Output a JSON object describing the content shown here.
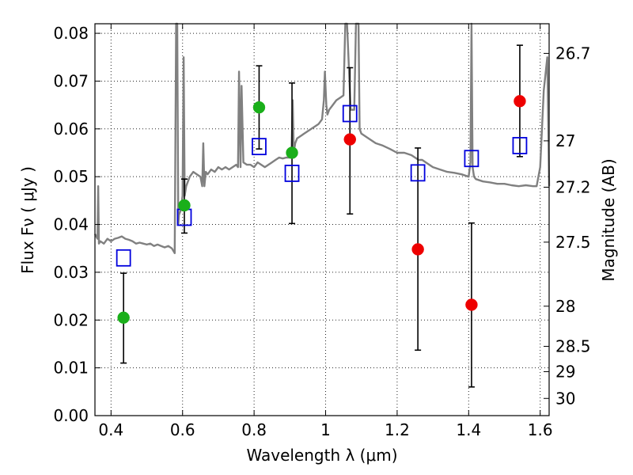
{
  "chart_data": {
    "type": "scatter",
    "xlabel": "Wavelength  λ (μm)",
    "ylabel_left": "Flux  Fν  ( μJy )",
    "ylabel_right": "Magnitude (AB)",
    "xlim": [
      0.355,
      1.625
    ],
    "ylim": [
      0.0,
      0.082
    ],
    "grid": true,
    "x_ticks": [
      0.4,
      0.6,
      0.8,
      1.0,
      1.2,
      1.4,
      1.6
    ],
    "x_tick_labels": [
      "0.4",
      "0.6",
      "0.8",
      "1",
      "1.2",
      "1.4",
      "1.6"
    ],
    "y_ticks": [
      0.0,
      0.01,
      0.02,
      0.03,
      0.04,
      0.05,
      0.06,
      0.07,
      0.08
    ],
    "y_tick_labels": [
      "0.00",
      "0.01",
      "0.02",
      "0.03",
      "0.04",
      "0.05",
      "0.06",
      "0.07",
      "0.08"
    ],
    "right_axis_ticks": [
      {
        "flux": 0.0758,
        "label": "26.7"
      },
      {
        "flux": 0.0575,
        "label": "27"
      },
      {
        "flux": 0.0478,
        "label": "27.2"
      },
      {
        "flux": 0.0363,
        "label": "27.5"
      },
      {
        "flux": 0.0229,
        "label": "28"
      },
      {
        "flux": 0.0145,
        "label": "28.5"
      },
      {
        "flux": 0.0092,
        "label": "29"
      },
      {
        "flux": 0.0036,
        "label": "30"
      }
    ],
    "colors": {
      "template": "#808080",
      "detection": "#1aaf1a",
      "upper_limit": "#ee0000",
      "model_box": "#0000dd",
      "errorbar": "#000000"
    },
    "series": [
      {
        "name": "observed-detections",
        "marker": "circle",
        "color": "#1aaf1a",
        "points": [
          {
            "x": 0.435,
            "y": 0.0205,
            "ylo": 0.011,
            "yhi": 0.0298
          },
          {
            "x": 0.605,
            "y": 0.044,
            "ylo": 0.0382,
            "yhi": 0.0495
          },
          {
            "x": 0.814,
            "y": 0.0645,
            "ylo": 0.0558,
            "yhi": 0.0732
          },
          {
            "x": 0.906,
            "y": 0.055,
            "ylo": 0.0402,
            "yhi": 0.0696
          }
        ]
      },
      {
        "name": "observed-low-significance",
        "marker": "circle",
        "color": "#ee0000",
        "points": [
          {
            "x": 1.068,
            "y": 0.0578,
            "ylo": 0.0422,
            "yhi": 0.0728
          },
          {
            "x": 1.258,
            "y": 0.0348,
            "ylo": 0.0137,
            "yhi": 0.056
          },
          {
            "x": 1.408,
            "y": 0.0232,
            "ylo": 0.006,
            "yhi": 0.0403
          },
          {
            "x": 1.543,
            "y": 0.0658,
            "ylo": 0.0542,
            "yhi": 0.0775
          }
        ]
      },
      {
        "name": "model-synthetic-photometry",
        "marker": "open-square",
        "color": "#0000dd",
        "points": [
          {
            "x": 0.435,
            "y": 0.033
          },
          {
            "x": 0.605,
            "y": 0.0415
          },
          {
            "x": 0.814,
            "y": 0.0563
          },
          {
            "x": 0.906,
            "y": 0.0507
          },
          {
            "x": 1.068,
            "y": 0.0632
          },
          {
            "x": 1.258,
            "y": 0.0508
          },
          {
            "x": 1.408,
            "y": 0.0538
          },
          {
            "x": 1.543,
            "y": 0.0565
          }
        ]
      },
      {
        "name": "template-spectrum",
        "marker": "line",
        "color": "#808080",
        "x": [
          0.355,
          0.362,
          0.364,
          0.366,
          0.37,
          0.38,
          0.39,
          0.4,
          0.41,
          0.42,
          0.43,
          0.44,
          0.45,
          0.46,
          0.47,
          0.48,
          0.49,
          0.5,
          0.51,
          0.52,
          0.53,
          0.54,
          0.55,
          0.56,
          0.57,
          0.578,
          0.582,
          0.585,
          0.588,
          0.59,
          0.595,
          0.6,
          0.603,
          0.606,
          0.61,
          0.62,
          0.63,
          0.64,
          0.65,
          0.655,
          0.658,
          0.661,
          0.665,
          0.67,
          0.68,
          0.69,
          0.7,
          0.71,
          0.72,
          0.73,
          0.74,
          0.75,
          0.755,
          0.758,
          0.762,
          0.765,
          0.77,
          0.78,
          0.79,
          0.8,
          0.81,
          0.82,
          0.83,
          0.84,
          0.85,
          0.86,
          0.87,
          0.88,
          0.89,
          0.9,
          0.905,
          0.908,
          0.911,
          0.915,
          0.92,
          0.93,
          0.94,
          0.95,
          0.96,
          0.97,
          0.98,
          0.99,
          0.995,
          0.998,
          1.002,
          1.005,
          1.01,
          1.02,
          1.03,
          1.04,
          1.05,
          1.055,
          1.06,
          1.07,
          1.08,
          1.085,
          1.088,
          1.092,
          1.095,
          1.1,
          1.12,
          1.14,
          1.16,
          1.18,
          1.2,
          1.22,
          1.24,
          1.26,
          1.27,
          1.28,
          1.3,
          1.32,
          1.34,
          1.36,
          1.38,
          1.4,
          1.405,
          1.408,
          1.411,
          1.415,
          1.42,
          1.44,
          1.46,
          1.48,
          1.5,
          1.52,
          1.54,
          1.56,
          1.58,
          1.59,
          1.6,
          1.61,
          1.62,
          1.625
        ],
        "y": [
          0.038,
          0.037,
          0.048,
          0.036,
          0.0365,
          0.036,
          0.037,
          0.0365,
          0.037,
          0.0372,
          0.0375,
          0.037,
          0.0368,
          0.0365,
          0.036,
          0.0362,
          0.036,
          0.0358,
          0.036,
          0.0355,
          0.0358,
          0.0355,
          0.0352,
          0.0355,
          0.035,
          0.034,
          0.082,
          0.082,
          0.04,
          0.042,
          0.043,
          0.046,
          0.075,
          0.046,
          0.048,
          0.05,
          0.051,
          0.0505,
          0.05,
          0.048,
          0.057,
          0.048,
          0.051,
          0.0505,
          0.0515,
          0.051,
          0.052,
          0.0515,
          0.052,
          0.0515,
          0.052,
          0.0525,
          0.052,
          0.072,
          0.052,
          0.069,
          0.053,
          0.0525,
          0.0525,
          0.052,
          0.053,
          0.0525,
          0.052,
          0.0525,
          0.053,
          0.0535,
          0.054,
          0.0538,
          0.054,
          0.054,
          0.056,
          0.066,
          0.055,
          0.057,
          0.058,
          0.0585,
          0.059,
          0.0595,
          0.06,
          0.0605,
          0.061,
          0.062,
          0.066,
          0.072,
          0.065,
          0.063,
          0.064,
          0.065,
          0.066,
          0.0665,
          0.067,
          0.082,
          0.082,
          0.064,
          0.064,
          0.082,
          0.082,
          0.082,
          0.06,
          0.059,
          0.058,
          0.057,
          0.0565,
          0.0558,
          0.055,
          0.055,
          0.0545,
          0.0535,
          0.0535,
          0.053,
          0.052,
          0.0515,
          0.051,
          0.0508,
          0.0505,
          0.05,
          0.053,
          0.082,
          0.052,
          0.05,
          0.0495,
          0.049,
          0.0488,
          0.0485,
          0.0485,
          0.0482,
          0.048,
          0.0482,
          0.048,
          0.048,
          0.052,
          0.068,
          0.075,
          0.048
        ]
      }
    ]
  }
}
